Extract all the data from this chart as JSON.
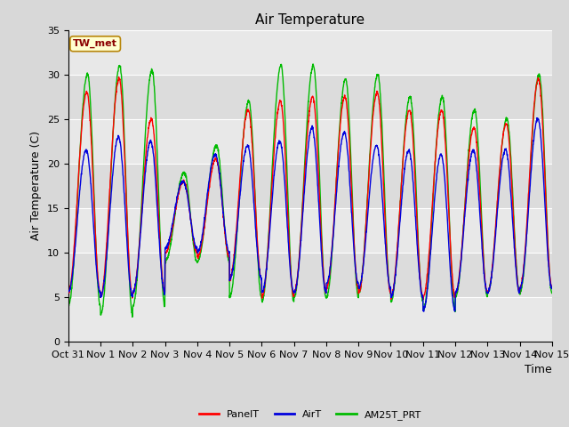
{
  "title": "Air Temperature",
  "ylabel": "Air Temperature (C)",
  "xlabel": "Time",
  "annotation": "TW_met",
  "annotation_color": "#8B0000",
  "annotation_bg": "#FFFFD0",
  "annotation_border": "#B8860B",
  "ylim": [
    0,
    35
  ],
  "yticks": [
    0,
    5,
    10,
    15,
    20,
    25,
    30,
    35
  ],
  "xtick_labels": [
    "Oct 31",
    "Nov 1",
    "Nov 2",
    "Nov 3",
    "Nov 4",
    "Nov 5",
    "Nov 6",
    "Nov 7",
    "Nov 8",
    "Nov 9",
    "Nov 10",
    "Nov 11",
    "Nov 12",
    "Nov 13",
    "Nov 14",
    "Nov 15"
  ],
  "series": {
    "PanelT": {
      "color": "#FF0000",
      "lw": 1.0
    },
    "AirT": {
      "color": "#0000DD",
      "lw": 1.0
    },
    "AM25T_PRT": {
      "color": "#00BB00",
      "lw": 1.0
    }
  },
  "bg_color": "#D8D8D8",
  "plot_bg": "#E8E8E8",
  "band_colors": [
    "#E8E8E8",
    "#DCDCDC"
  ],
  "grid_color": "#FFFFFF",
  "title_fontsize": 11,
  "label_fontsize": 9,
  "tick_fontsize": 8
}
